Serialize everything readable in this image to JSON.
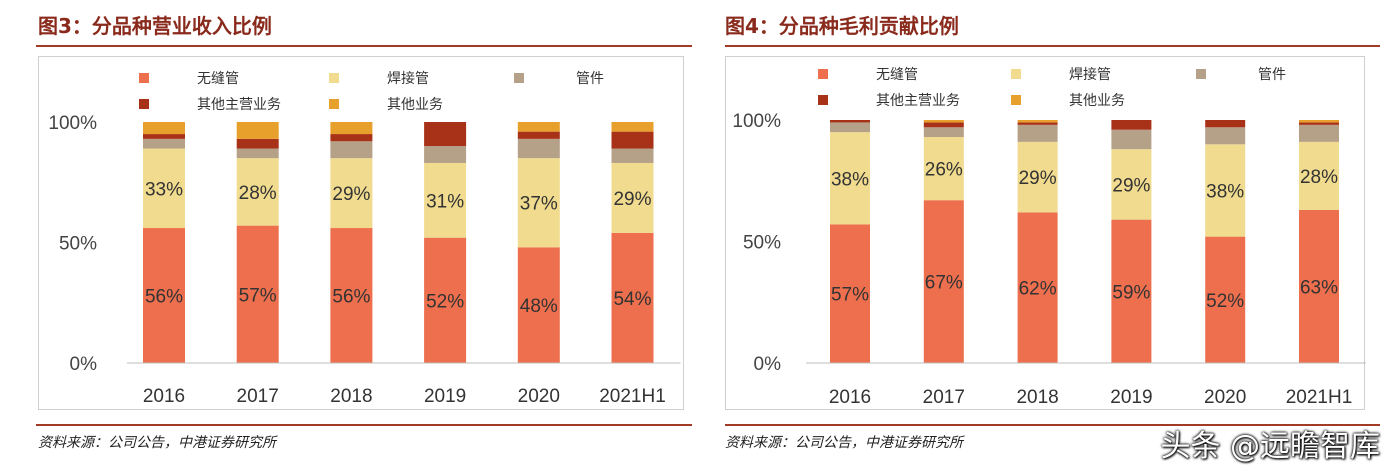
{
  "charts": [
    {
      "figure_title": "图3：分品种营业收入比例",
      "source": "资料来源：公司公告，中港证券研究所"
    },
    {
      "figure_title": "图4：分品种毛利贡献比例",
      "source": "资料来源：公司公告，中港证券研究所"
    }
  ],
  "watermark": "头条 @远瞻智库",
  "chart_data": [
    {
      "type": "bar",
      "stacked": true,
      "title": "图3：分品种营业收入比例",
      "categories": [
        "2016",
        "2017",
        "2018",
        "2019",
        "2020",
        "2021H1"
      ],
      "yticks": [
        "0%",
        "50%",
        "100%"
      ],
      "ylim": [
        0,
        100
      ],
      "legend_position": "top",
      "grid": false,
      "series": [
        {
          "name": "无缝管",
          "color": "#ed6f4d",
          "values": [
            56,
            57,
            56,
            52,
            48,
            54
          ],
          "labels": [
            "56%",
            "57%",
            "56%",
            "52%",
            "48%",
            "54%"
          ]
        },
        {
          "name": "焊接管",
          "color": "#f0db8e",
          "values": [
            33,
            28,
            29,
            31,
            37,
            29
          ],
          "labels": [
            "33%",
            "28%",
            "29%",
            "31%",
            "37%",
            "29%"
          ]
        },
        {
          "name": "管件",
          "color": "#b5a088",
          "values": [
            4,
            4,
            7,
            7,
            8,
            6
          ]
        },
        {
          "name": "其他主营业务",
          "color": "#a83218",
          "values": [
            2,
            4,
            3,
            10,
            3,
            7
          ]
        },
        {
          "name": "其他业务",
          "color": "#e8a02c",
          "values": [
            5,
            7,
            5,
            0,
            4,
            4
          ]
        }
      ]
    },
    {
      "type": "bar",
      "stacked": true,
      "title": "图4：分品种毛利贡献比例",
      "categories": [
        "2016",
        "2017",
        "2018",
        "2019",
        "2020",
        "2021H1"
      ],
      "yticks": [
        "0%",
        "50%",
        "100%"
      ],
      "ylim": [
        0,
        100
      ],
      "legend_position": "top",
      "grid": false,
      "series": [
        {
          "name": "无缝管",
          "color": "#ed6f4d",
          "values": [
            57,
            67,
            62,
            59,
            52,
            63
          ],
          "labels": [
            "57%",
            "67%",
            "62%",
            "59%",
            "52%",
            "63%"
          ]
        },
        {
          "name": "焊接管",
          "color": "#f0db8e",
          "values": [
            38,
            26,
            29,
            29,
            38,
            28
          ],
          "labels": [
            "38%",
            "26%",
            "29%",
            "29%",
            "38%",
            "28%"
          ]
        },
        {
          "name": "管件",
          "color": "#b5a088",
          "values": [
            4,
            4,
            7,
            8,
            7,
            7
          ]
        },
        {
          "name": "其他主营业务",
          "color": "#a83218",
          "values": [
            1,
            2,
            1,
            4,
            3,
            1
          ]
        },
        {
          "name": "其他业务",
          "color": "#e8a02c",
          "values": [
            0,
            1,
            1,
            0,
            0,
            1
          ]
        }
      ]
    }
  ]
}
